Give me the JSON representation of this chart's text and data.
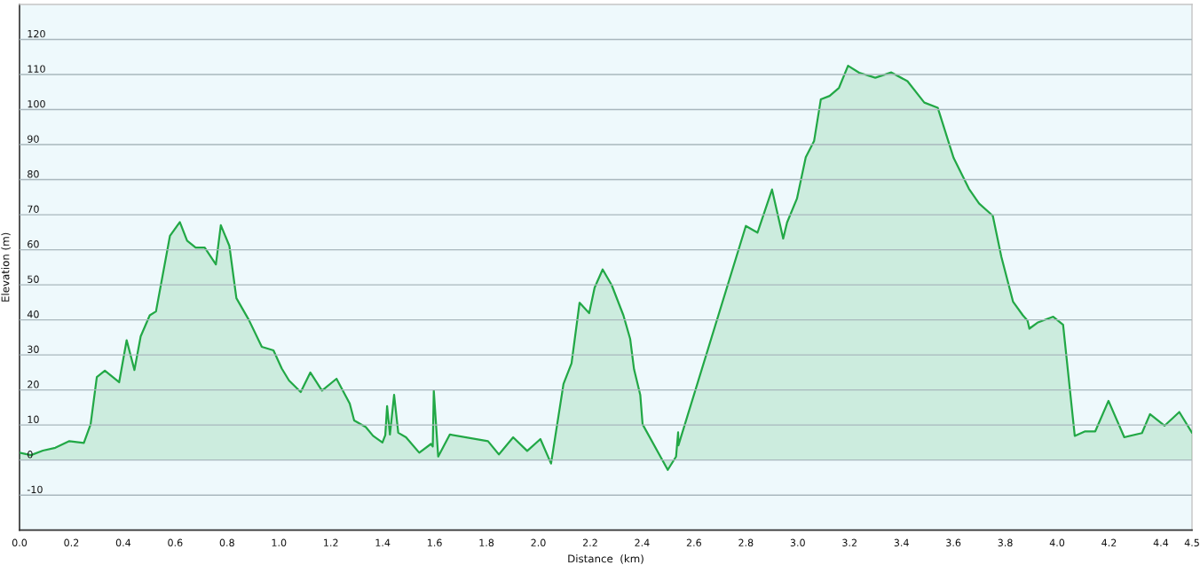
{
  "chart_data": {
    "type": "area",
    "xlabel": "Distance  (km)",
    "ylabel": "Elevation (m)",
    "x": [
      0,
      0.044,
      0.09,
      0.138,
      0.192,
      0.248,
      0.274,
      0.298,
      0.329,
      0.384,
      0.413,
      0.443,
      0.467,
      0.502,
      0.526,
      0.58,
      0.618,
      0.646,
      0.679,
      0.714,
      0.757,
      0.776,
      0.809,
      0.836,
      0.884,
      0.934,
      0.979,
      1.011,
      1.039,
      1.084,
      1.121,
      1.166,
      1.222,
      1.273,
      1.29,
      1.335,
      1.363,
      1.399,
      1.41,
      1.417,
      1.428,
      1.444,
      1.46,
      1.49,
      1.541,
      1.586,
      1.593,
      1.597,
      1.614,
      1.659,
      1.806,
      1.848,
      1.903,
      1.957,
      2.008,
      2.049,
      2.097,
      2.128,
      2.159,
      2.196,
      2.217,
      2.248,
      2.283,
      2.328,
      2.354,
      2.369,
      2.393,
      2.402,
      2.499,
      2.531,
      2.539,
      2.54,
      2.8,
      2.845,
      2.901,
      2.944,
      2.959,
      2.997,
      3.031,
      3.063,
      3.089,
      3.123,
      3.159,
      3.194,
      3.237,
      3.299,
      3.361,
      3.423,
      3.488,
      3.54,
      3.601,
      3.66,
      3.699,
      3.752,
      3.785,
      3.83,
      3.868,
      3.886,
      3.893,
      3.924,
      3.985,
      4.023,
      4.068,
      4.108,
      4.147,
      4.198,
      4.259,
      4.327,
      4.358,
      4.414,
      4.471,
      4.52
    ],
    "series": [
      {
        "color": "#22a846",
        "values": [
          2.1,
          1.4,
          2.7,
          3.5,
          5.4,
          4.9,
          10.2,
          23.7,
          25.5,
          22.2,
          34.2,
          25.7,
          35.3,
          41.3,
          42.4,
          64.0,
          67.9,
          62.6,
          60.6,
          60.6,
          55.8,
          67.0,
          61.1,
          46.2,
          40.0,
          32.3,
          31.3,
          26.1,
          22.7,
          19.4,
          25.0,
          19.8,
          23.2,
          16.1,
          11.3,
          9.4,
          6.9,
          5.0,
          7.1,
          15.4,
          7.3,
          18.6,
          7.8,
          6.5,
          2.1,
          4.6,
          3.9,
          19.8,
          1.0,
          7.3,
          5.4,
          1.6,
          6.5,
          2.6,
          6.0,
          -1.0,
          21.7,
          27.6,
          44.9,
          41.9,
          49.2,
          54.4,
          49.9,
          41.3,
          34.6,
          25.9,
          18.6,
          10.2,
          -2.8,
          1.0,
          7.9,
          4.2,
          66.8,
          64.9,
          77.2,
          63.2,
          67.8,
          74.6,
          86.4,
          91.0,
          102.9,
          103.9,
          106.2,
          112.5,
          110.5,
          109.1,
          110.6,
          108.1,
          102.0,
          100.5,
          86.2,
          77.4,
          73.2,
          69.7,
          58.0,
          45.2,
          41.3,
          39.8,
          37.5,
          39.2,
          40.9,
          38.6,
          6.9,
          8.2,
          8.2,
          16.9,
          6.5,
          7.7,
          13.1,
          9.8,
          13.7,
          7.8
        ]
      }
    ],
    "xlim": [
      0,
      4.52
    ],
    "ylim": [
      -20,
      130
    ],
    "xticks": [
      {
        "value": 0,
        "label": "0.0"
      },
      0.2,
      0.4,
      0.6,
      0.8,
      {
        "value": 1,
        "label": "1.0"
      },
      1.2,
      1.4,
      1.6,
      1.8,
      {
        "value": 2,
        "label": "2.0"
      },
      2.2,
      2.4,
      2.6,
      2.8,
      {
        "value": 3,
        "label": "3.0"
      },
      3.2,
      3.4,
      3.6,
      3.8,
      {
        "value": 4,
        "label": "4.0"
      },
      4.2,
      4.4,
      {
        "value": 4.52,
        "label": "4.5"
      }
    ],
    "yticks": [
      -10,
      0,
      10,
      20,
      30,
      40,
      50,
      60,
      70,
      80,
      90,
      100,
      110,
      120
    ],
    "grid": "y"
  }
}
